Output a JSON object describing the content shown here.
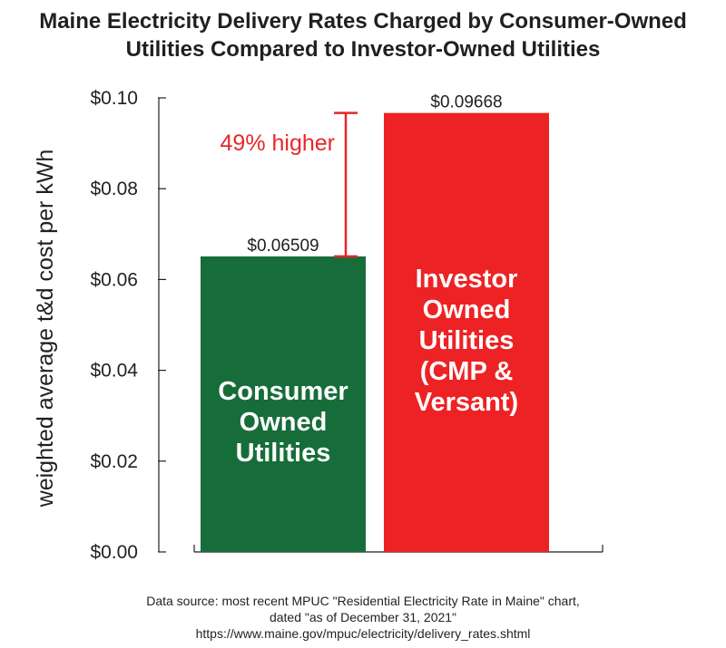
{
  "chart_data": {
    "type": "bar",
    "title": [
      "Maine Electricity Delivery Rates Charged by Consumer-Owned",
      "Utilities Compared to Investor-Owned Utilities"
    ],
    "ylabel": "weighted average t&d cost per kWh",
    "ylim": [
      0,
      0.1
    ],
    "yticks": [
      {
        "value": 0.0,
        "label": "$0.00"
      },
      {
        "value": 0.02,
        "label": "$0.02"
      },
      {
        "value": 0.04,
        "label": "$0.04"
      },
      {
        "value": 0.06,
        "label": "$0.06"
      },
      {
        "value": 0.08,
        "label": "$0.08"
      },
      {
        "value": 0.1,
        "label": "$0.10"
      }
    ],
    "bars": [
      {
        "category": [
          "Consumer",
          "Owned",
          "Utilities"
        ],
        "value": 0.06509,
        "label": "$0.06509",
        "color": "#176d3a"
      },
      {
        "category": [
          "Investor",
          "Owned",
          "Utilities",
          "(CMP &",
          "Versant)"
        ],
        "value": 0.09668,
        "label": "$0.09668",
        "color": "#ed2224"
      }
    ],
    "annotation": {
      "text": "49% higher",
      "color": "#e8262a"
    },
    "source": [
      "Data source: most recent MPUC \"Residential Electricity Rate in Maine\" chart,",
      "dated \"as of December 31, 2021\"",
      "https://www.maine.gov/mpuc/electricity/delivery_rates.shtml"
    ],
    "grid": false,
    "legend": "none"
  }
}
